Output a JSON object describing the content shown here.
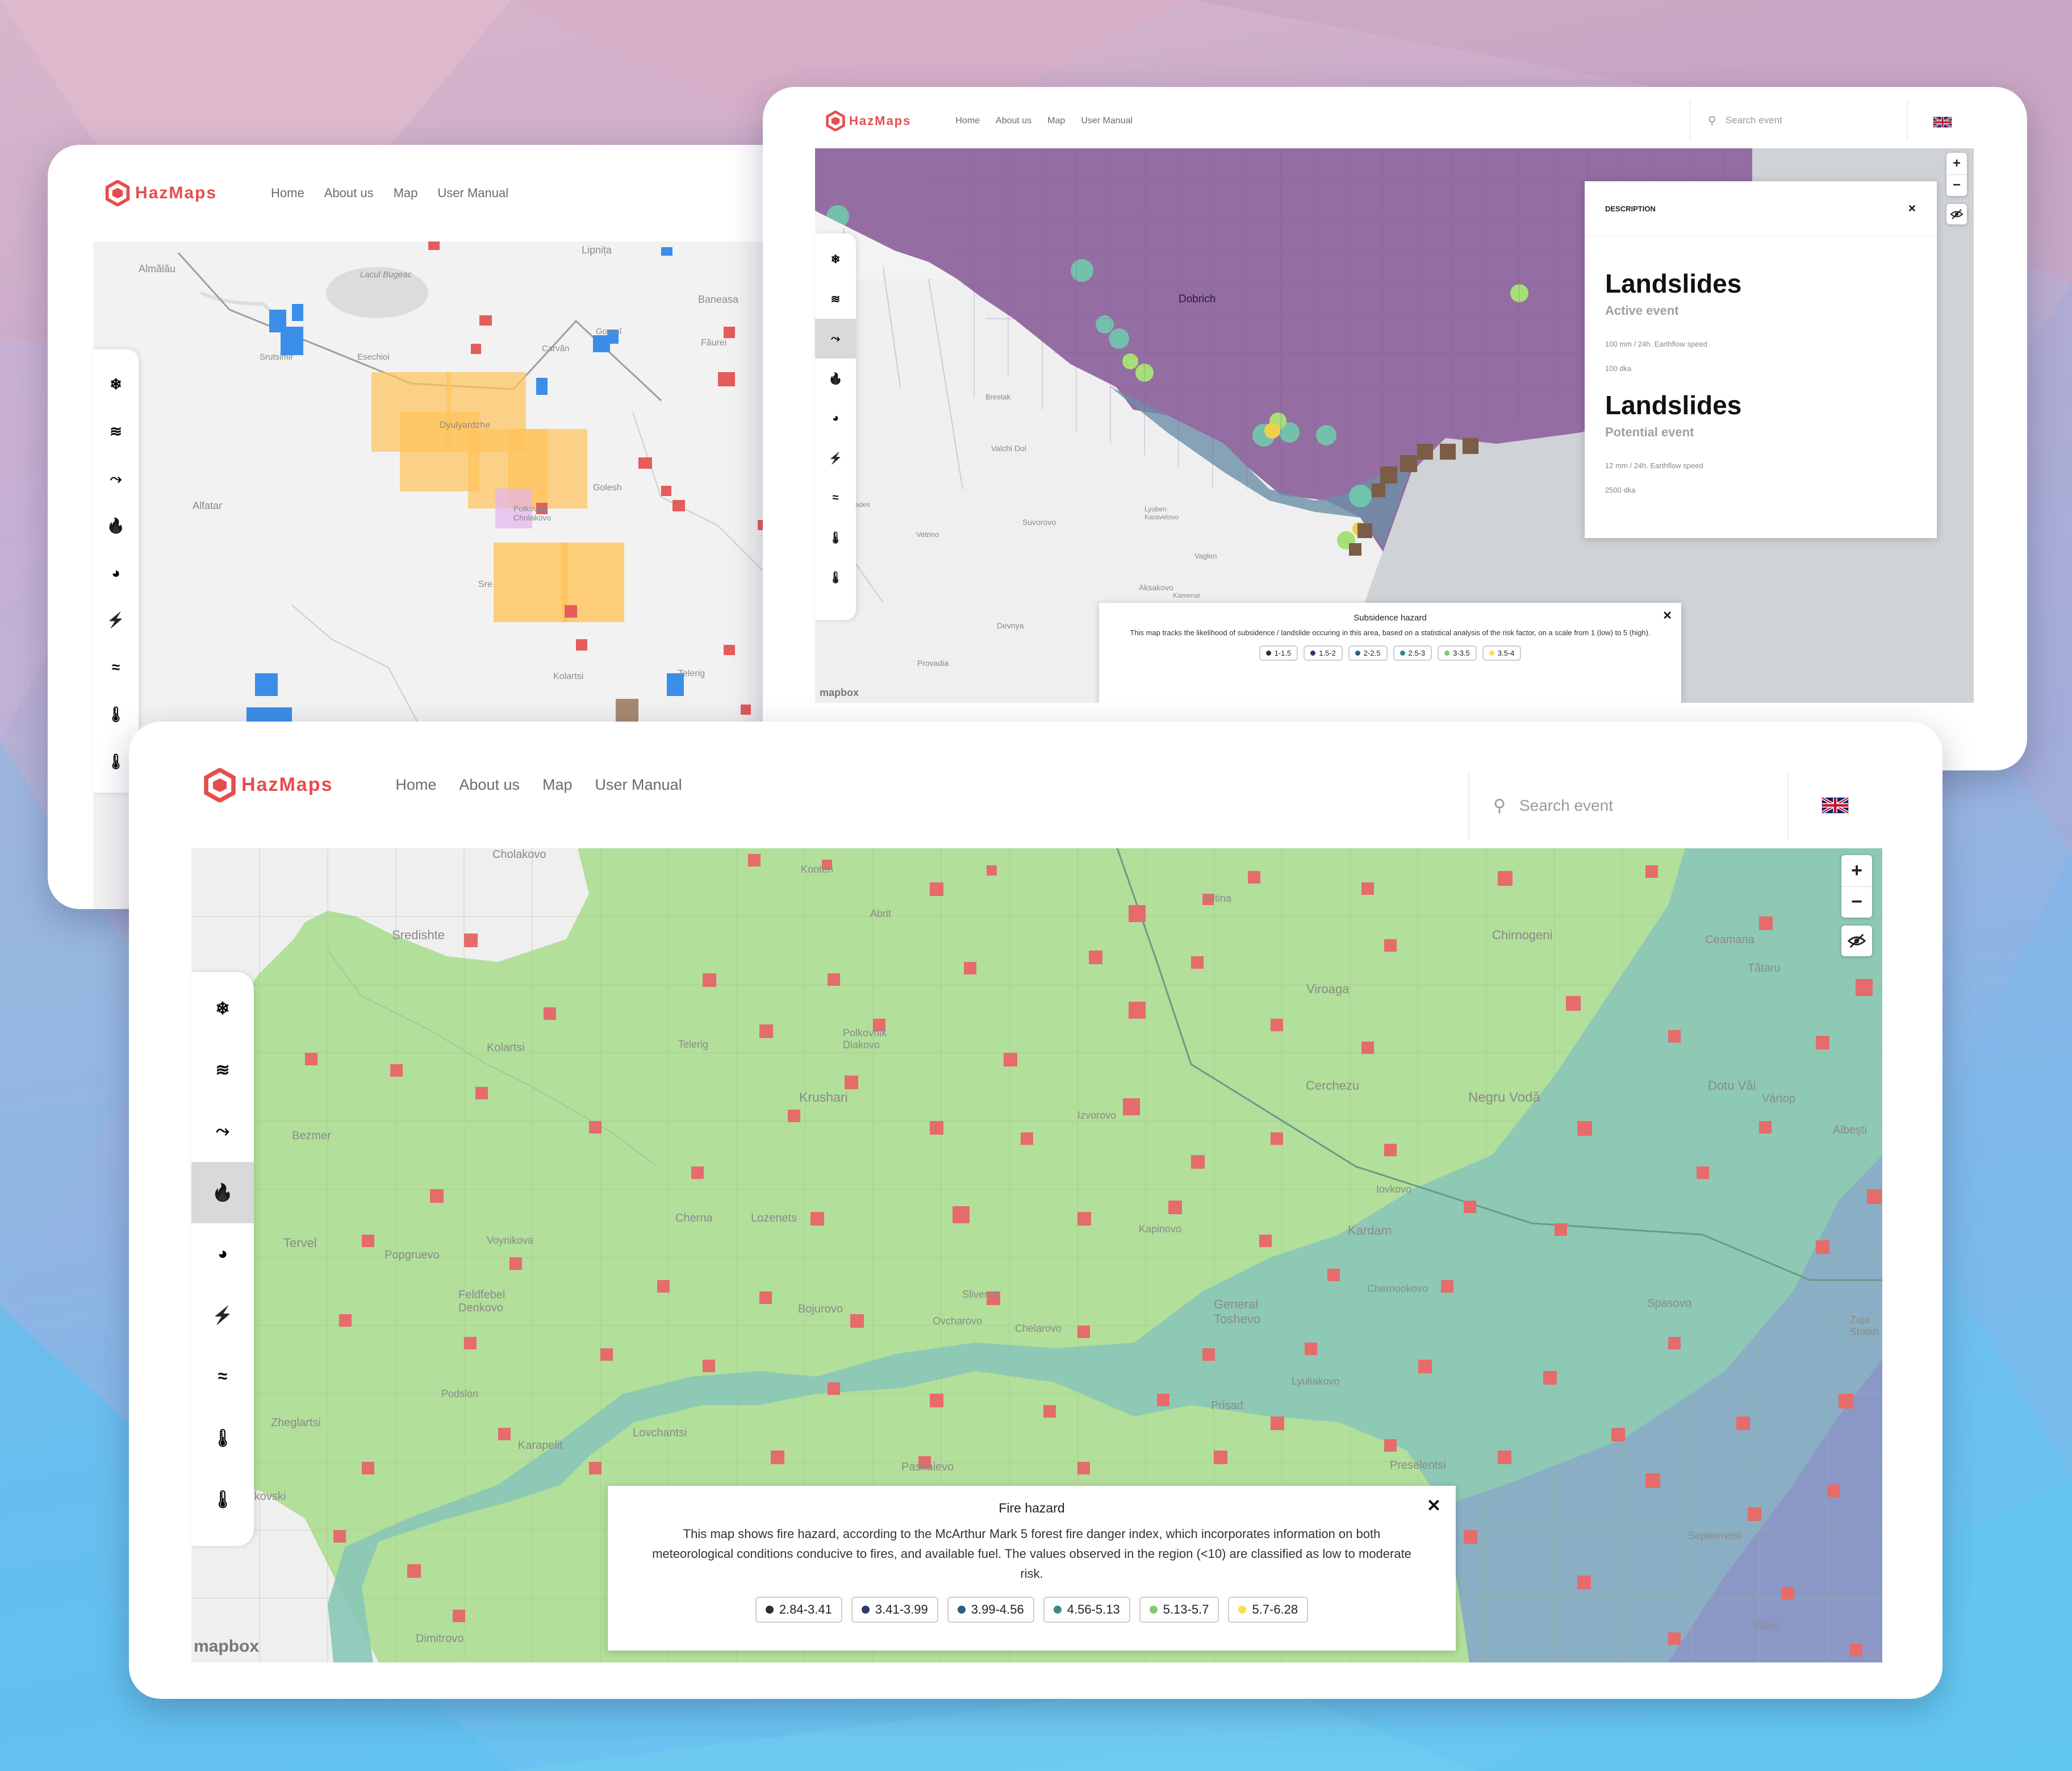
{
  "brand": "HazMaps",
  "nav": [
    "Home",
    "About us",
    "Map",
    "User Manual"
  ],
  "search": {
    "placeholder": "Search event"
  },
  "mapbox_label": "mapbox",
  "toolbar_icons": [
    "snowflake-icon",
    "flood-icon",
    "landslide-icon",
    "fire-icon",
    "earthquake-icon",
    "lightning-icon",
    "wind-icon",
    "heat-thermometer-icon",
    "cold-thermometer-icon"
  ],
  "left_window": {
    "active_tool": -1,
    "places": [
      "Almălău",
      "Lacul Bugeac",
      "Lipnița",
      "Baneasa",
      "Gorunî",
      "Făurei",
      "Carvăn",
      "Esechioi",
      "Srutsimir",
      "Dyulyardzhe",
      "Alfatar",
      "Golesh",
      "Polkovnik Cholakovo",
      "Sre",
      "Kolartsi",
      "Telerig"
    ]
  },
  "right_window": {
    "active_tool": 2,
    "places": [
      "Dobrich",
      "Brestak",
      "Valchi Dol",
      "Suvorovo",
      "Vetrino",
      "Lyuben Karavelovo",
      "Vaglen",
      "Aksakovo",
      "Devnya",
      "Provadia",
      "grades",
      "Kamenar"
    ],
    "description": {
      "header": "DESCRIPTION",
      "events": [
        {
          "title": "Landslides",
          "subtitle": "Active event",
          "line1": "100 mm / 24h. Earthflow speed",
          "line2": "100 dka"
        },
        {
          "title": "Landslides",
          "subtitle": "Potential event",
          "line1": "12 mm / 24h. Earthflow speed",
          "line2": "2500 dka"
        }
      ]
    },
    "legend": {
      "title": "Subsidence hazard",
      "text": "This map tracks the likelihood of subsidence / landslide occuring in this area, based on a statistical analysis of the risk factor, on a scale from 1 (low) to 5 (high).",
      "chips": [
        {
          "label": "1-1.5",
          "color": "#2f2f2f"
        },
        {
          "label": "1.5-2",
          "color": "#2d3a6b"
        },
        {
          "label": "2-2.5",
          "color": "#2f5f7c"
        },
        {
          "label": "2.5-3",
          "color": "#2e8a8a"
        },
        {
          "label": "3-3.5",
          "color": "#7ccc6a"
        },
        {
          "label": "3.5-4",
          "color": "#f7e04a"
        }
      ]
    }
  },
  "main_window": {
    "active_tool": 3,
    "places": [
      "Cholakovo",
      "Konten",
      "Abrit",
      "Sredishte",
      "Kolartsi",
      "Telerig",
      "Polkovnik Diakovo",
      "Krushari",
      "Izvorovo",
      "Oltina",
      "Chirnogeni",
      "Ceamana",
      "Tătaru",
      "Viroaga",
      "Cerchezu",
      "Negru Vodă",
      "Dotu Văi",
      "Vârtop",
      "Albești",
      "Bezmer",
      "Tervel",
      "Popgruevo",
      "Voynikova",
      "Cherna",
      "Lozenets",
      "Kapinovo",
      "Kardam",
      "Iovkovo",
      "Spasovo",
      "General Toshevo",
      "Chernookovo",
      "Feldfebel Denkovo",
      "Bojurovo",
      "Ovcharovo",
      "Slivensi",
      "Zheglartsi",
      "Podslon",
      "Karapelit",
      "Lovchantsi",
      "Paskalevo",
      "Prisad",
      "Lyuliakovo",
      "Preselentsi",
      "Zaja Stolan",
      "Benkovski",
      "Dimitrovo",
      "Septemvrisi",
      "Vidno",
      "Chelarovo"
    ],
    "legend": {
      "title": "Fire hazard",
      "text": "This map shows fire hazard, according to the McArthur Mark 5 forest fire danger index, which incorporates information on both meteorological conditions conducive to fires, and available fuel. The values observed in the region (<10) are classified as low to moderate risk.",
      "chips": [
        {
          "label": "2.84-3.41",
          "color": "#2f2f2f"
        },
        {
          "label": "3.41-3.99",
          "color": "#2d3a6b"
        },
        {
          "label": "3.99-4.56",
          "color": "#2f5f7c"
        },
        {
          "label": "4.56-5.13",
          "color": "#3a8a8c"
        },
        {
          "label": "5.13-5.7",
          "color": "#7ccc6a"
        },
        {
          "label": "5.7-6.28",
          "color": "#f7e04a"
        }
      ]
    }
  }
}
